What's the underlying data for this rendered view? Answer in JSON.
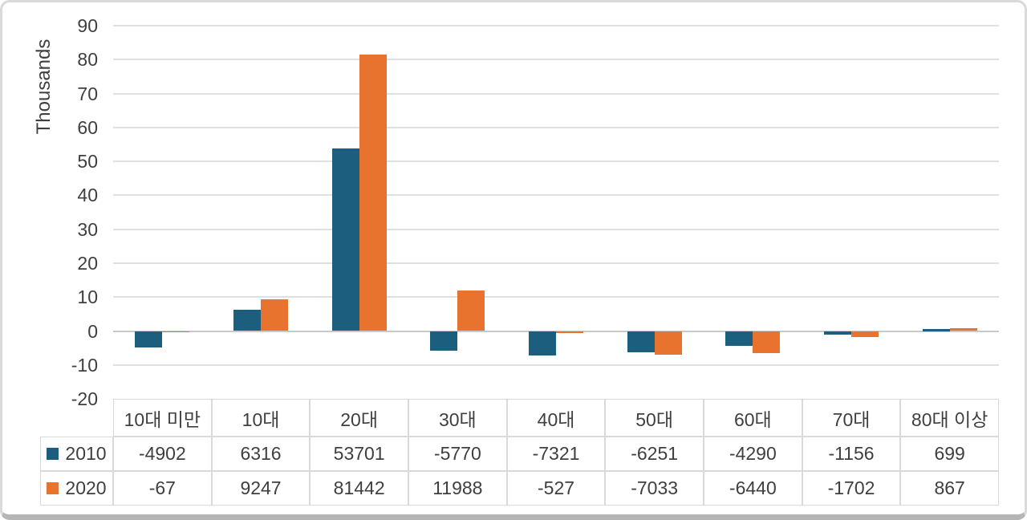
{
  "chart_data": {
    "type": "bar",
    "title": "",
    "xlabel": "",
    "ylabel": "Thousands",
    "categories": [
      "10대 미만",
      "10대",
      "20대",
      "30대",
      "40대",
      "50대",
      "60대",
      "70대",
      "80대 이상"
    ],
    "series": [
      {
        "name": "2010",
        "color": "#1b5e7d",
        "values": [
          -4902,
          6316,
          53701,
          -5770,
          -7321,
          -6251,
          -4290,
          -1156,
          699
        ]
      },
      {
        "name": "2020",
        "color": "#e8732f",
        "values": [
          -67,
          9247,
          81442,
          11988,
          -527,
          -7033,
          -6440,
          -1702,
          867
        ]
      }
    ],
    "value_scale": "raw values; y axis shown in thousands",
    "y_ticks": [
      90,
      80,
      70,
      60,
      50,
      40,
      30,
      20,
      10,
      0,
      -10,
      -20
    ],
    "ylim": [
      -20,
      90
    ],
    "grid": true,
    "legend_position": "data-table-left"
  },
  "data_table": {
    "column_headers": [
      "10대 미만",
      "10대",
      "20대",
      "30대",
      "40대",
      "50대",
      "60대",
      "70대",
      "80대 이상"
    ],
    "rows": [
      {
        "legend_label": "2010",
        "legend_color": "#1b5e7d",
        "values": [
          "-4902",
          "6316",
          "53701",
          "-5770",
          "-7321",
          "-6251",
          "-4290",
          "-1156",
          "699"
        ]
      },
      {
        "legend_label": "2020",
        "legend_color": "#e8732f",
        "values": [
          "-67",
          "9247",
          "81442",
          "11988",
          "-527",
          "-7033",
          "-6440",
          "-1702",
          "867"
        ]
      }
    ]
  },
  "colors": {
    "series_2010": "#1b5e7d",
    "series_2020": "#e8732f",
    "axis_text": "#3f3f3f",
    "gridline": "#e0e0e0",
    "table_border": "#d9d9d9",
    "frame_border": "#d9d9d9"
  }
}
